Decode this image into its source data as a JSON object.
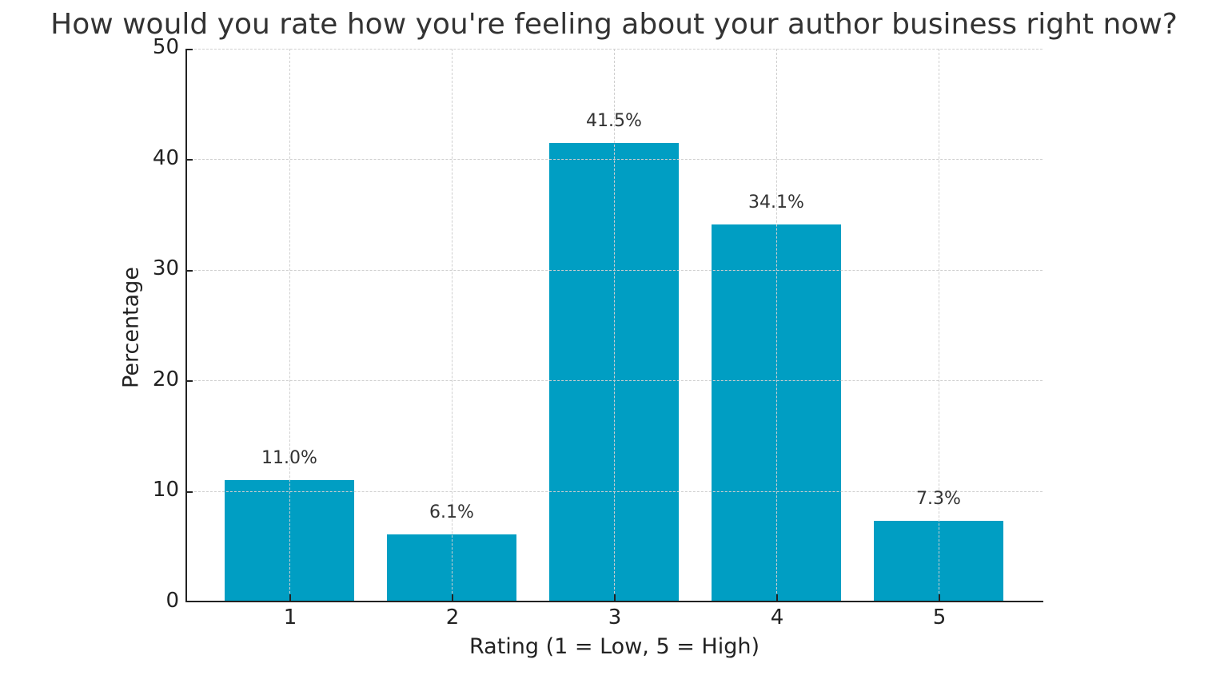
{
  "chart_data": {
    "type": "bar",
    "title": "How would you rate how you're feeling about your author business right now?",
    "xlabel": "Rating (1 = Low, 5 = High)",
    "ylabel": "Percentage",
    "categories": [
      "1",
      "2",
      "3",
      "4",
      "5"
    ],
    "values": [
      11.0,
      6.1,
      41.5,
      34.1,
      7.3
    ],
    "value_labels": [
      "11.0%",
      "6.1%",
      "41.5%",
      "34.1%",
      "7.3%"
    ],
    "ylim": [
      0,
      50
    ],
    "yticks": [
      "0",
      "10",
      "20",
      "30",
      "40",
      "50"
    ],
    "grid": true,
    "grid_style": "dashed",
    "legend": null,
    "bar_color": "#009ec3"
  }
}
